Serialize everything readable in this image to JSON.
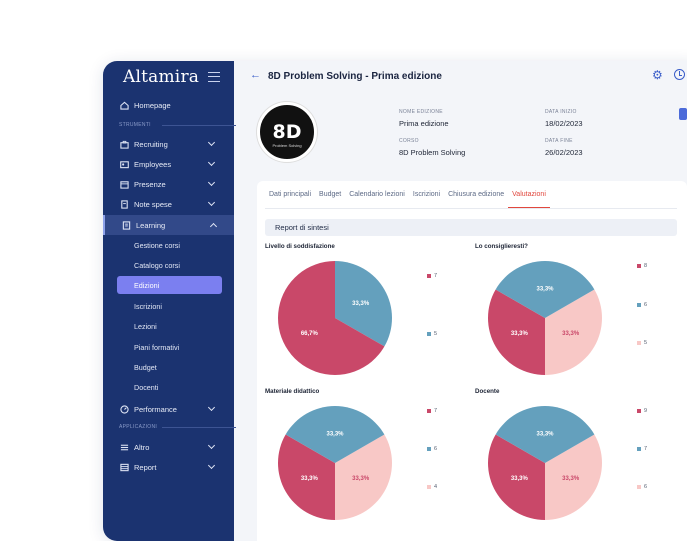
{
  "app": {
    "logo": "Altamira"
  },
  "colors": {
    "sidebar": "#1b3370",
    "accent": "#e1473d",
    "slice_red": "#c94869",
    "slice_blue": "#64a0bd",
    "slice_pink": "#f8c8c6"
  },
  "sidebar": {
    "section_tools": "STRUMENTI",
    "section_apps": "APPLICAZIONI",
    "items": [
      {
        "label": "Homepage",
        "icon": "home-icon"
      },
      {
        "label": "Recruiting",
        "icon": "briefcase-icon"
      },
      {
        "label": "Employees",
        "icon": "id-card-icon"
      },
      {
        "label": "Presenze",
        "icon": "calendar-icon"
      },
      {
        "label": "Note spese",
        "icon": "receipt-icon"
      },
      {
        "label": "Learning",
        "icon": "book-icon"
      }
    ],
    "learning_sub": [
      "Gestione corsi",
      "Catalogo corsi",
      "Edizioni",
      "Iscrizioni",
      "Lezioni",
      "Piani formativi",
      "Budget",
      "Docenti"
    ],
    "items_after": [
      {
        "label": "Performance",
        "icon": "gauge-icon"
      }
    ],
    "apps": [
      {
        "label": "Altro",
        "icon": "list-icon"
      },
      {
        "label": "Report",
        "icon": "table-icon"
      }
    ]
  },
  "header": {
    "title": "8D Problem Solving - Prima edizione",
    "back": "←"
  },
  "course": {
    "image_big": "8D",
    "image_small": "Problem Solving",
    "edition_label": "NOME EDIZIONE",
    "edition_value": "Prima edizione",
    "course_label": "CORSO",
    "course_value": "8D Problem Solving",
    "start_label": "DATA INIZIO",
    "start_value": "18/02/2023",
    "end_label": "DATA FINE",
    "end_value": "26/02/2023"
  },
  "tabs": [
    "Dati principali",
    "Budget",
    "Calendario lezioni",
    "Iscrizioni",
    "Chiusura edizione",
    "Valutazioni"
  ],
  "report": {
    "title": "Report di sintesi"
  },
  "chart_data": [
    {
      "type": "pie",
      "title": "Livello di soddisfazione",
      "slices": [
        {
          "label": "5",
          "value": 33.3,
          "text": "33,3%",
          "color": "#64a0bd"
        },
        {
          "label": "7",
          "value": 66.7,
          "text": "66,7%",
          "color": "#c94869"
        }
      ],
      "legend": [
        "7",
        "5"
      ]
    },
    {
      "type": "pie",
      "title": "Lo consiglieresti?",
      "slices": [
        {
          "label": "5",
          "value": 33.3,
          "text": "33,3%",
          "color": "#f8c8c6"
        },
        {
          "label": "8",
          "value": 33.3,
          "text": "33,3%",
          "color": "#c94869"
        },
        {
          "label": "6",
          "value": 33.3,
          "text": "33,3%",
          "color": "#64a0bd"
        }
      ],
      "legend": [
        "8",
        "6",
        "5"
      ]
    },
    {
      "type": "pie",
      "title": "Materiale didattico",
      "slices": [
        {
          "label": "4",
          "value": 33.3,
          "text": "33,3%",
          "color": "#f8c8c6"
        },
        {
          "label": "7",
          "value": 33.3,
          "text": "33,3%",
          "color": "#c94869"
        },
        {
          "label": "6",
          "value": 33.3,
          "text": "33,3%",
          "color": "#64a0bd"
        }
      ],
      "legend": [
        "7",
        "6",
        "4"
      ]
    },
    {
      "type": "pie",
      "title": "Docente",
      "slices": [
        {
          "label": "6",
          "value": 33.3,
          "text": "33,3%",
          "color": "#f8c8c6"
        },
        {
          "label": "9",
          "value": 33.3,
          "text": "33,3%",
          "color": "#c94869"
        },
        {
          "label": "7",
          "value": 33.3,
          "text": "33,3%",
          "color": "#64a0bd"
        }
      ],
      "legend": [
        "9",
        "7",
        "6"
      ]
    }
  ]
}
